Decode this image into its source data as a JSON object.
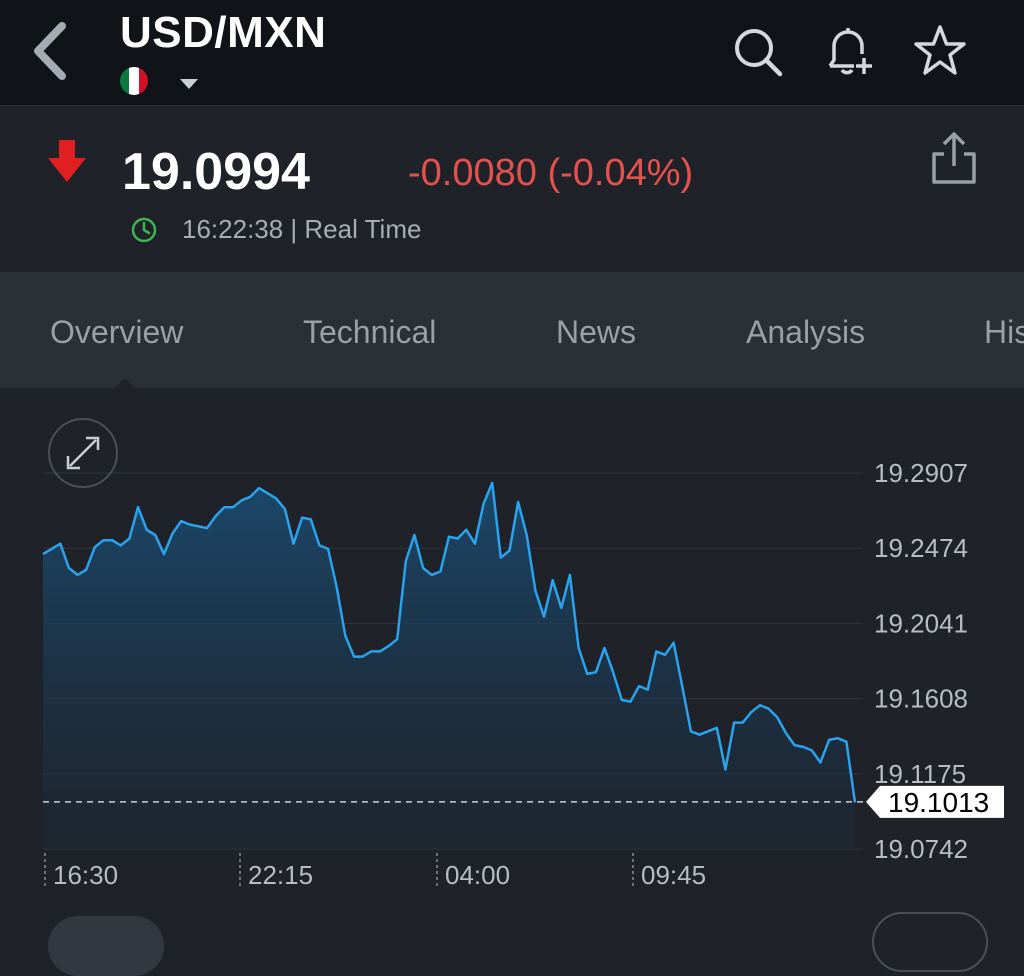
{
  "header": {
    "title": "USD/MXN",
    "flag_colors": [
      "#0b7a3e",
      "#ffffff",
      "#ce1126"
    ]
  },
  "quote": {
    "price": "19.0994",
    "change": "-0.0080 (-0.04%)",
    "time_status": "16:22:38 | Real Time",
    "direction": "down",
    "down_color": "#e5524e",
    "up_color": "#2db34a"
  },
  "tabs": [
    {
      "label": "Overview",
      "active": true
    },
    {
      "label": "Technical",
      "active": false
    },
    {
      "label": "News",
      "active": false
    },
    {
      "label": "Analysis",
      "active": false
    },
    {
      "label": "His",
      "active": false
    }
  ],
  "chart_data": {
    "type": "area",
    "title": "",
    "xlabel": "",
    "ylabel": "",
    "x_tick_labels": [
      "16:30",
      "22:15",
      "04:00",
      "09:45"
    ],
    "y_tick_labels": [
      "19.2907",
      "19.2474",
      "19.2041",
      "19.1608",
      "19.1175",
      "19.0742"
    ],
    "ylim": [
      19.0742,
      19.2907
    ],
    "current_label": "19.1013",
    "current_value": 19.1013,
    "line_color": "#2aa3ee",
    "grid": true,
    "series": [
      {
        "values": [
          19.244,
          19.247,
          19.25,
          19.236,
          19.232,
          19.235,
          19.248,
          19.252,
          19.252,
          19.249,
          19.253,
          19.271,
          19.258,
          19.255,
          19.244,
          19.256,
          19.263,
          19.261,
          19.26,
          19.259,
          19.266,
          19.271,
          19.271,
          19.275,
          19.277,
          19.282,
          19.279,
          19.276,
          19.27,
          19.25,
          19.265,
          19.264,
          19.249,
          19.247,
          19.225,
          19.197,
          19.185,
          19.185,
          19.188,
          19.188,
          19.191,
          19.195,
          19.24,
          19.255,
          19.236,
          19.232,
          19.234,
          19.254,
          19.253,
          19.258,
          19.25,
          19.273,
          19.285,
          19.242,
          19.246,
          19.274,
          19.255,
          19.223,
          19.208,
          19.229,
          19.213,
          19.232,
          19.19,
          19.175,
          19.176,
          19.19,
          19.176,
          19.16,
          19.159,
          19.168,
          19.166,
          19.188,
          19.186,
          19.193,
          19.168,
          19.142,
          19.14,
          19.142,
          19.144,
          19.12,
          19.147,
          19.147,
          19.153,
          19.157,
          19.155,
          19.15,
          19.141,
          19.134,
          19.133,
          19.131,
          19.124,
          19.137,
          19.138,
          19.136,
          19.101
        ]
      }
    ]
  }
}
